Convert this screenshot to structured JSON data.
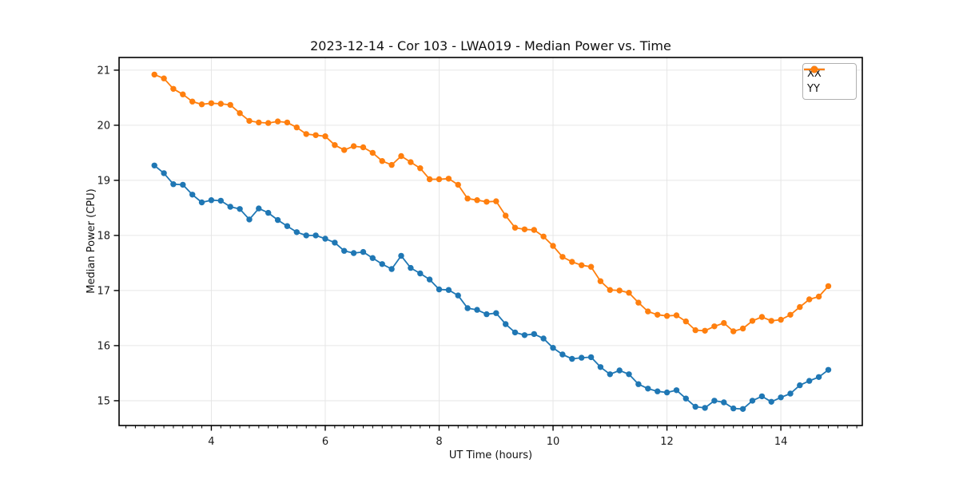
{
  "style": {
    "background": "#ffffff",
    "grid_color": "#e6e6e6",
    "spine_color": "#000000",
    "tick_color": "#1a1a1a",
    "series_blue": "#1f77b4",
    "series_orange": "#ff7f0e"
  },
  "chart_data": {
    "type": "line",
    "title": "2023-12-14 - Cor 103 - LWA019 - Median Power vs. Time",
    "xlabel": "UT Time (hours)",
    "ylabel": "Median Power (CPU)",
    "grid": true,
    "legend_position": "upper right",
    "xlim": [
      2.38,
      15.43
    ],
    "ylim": [
      14.55,
      21.23
    ],
    "xticks": [
      4,
      6,
      8,
      10,
      12,
      14
    ],
    "yticks": [
      15,
      16,
      17,
      18,
      19,
      20,
      21
    ],
    "x_minor_tick_step": 0.1667,
    "x": [
      3.0,
      3.167,
      3.333,
      3.5,
      3.667,
      3.833,
      4.0,
      4.167,
      4.333,
      4.5,
      4.667,
      4.833,
      5.0,
      5.167,
      5.333,
      5.5,
      5.667,
      5.833,
      6.0,
      6.167,
      6.333,
      6.5,
      6.667,
      6.833,
      7.0,
      7.167,
      7.333,
      7.5,
      7.667,
      7.833,
      8.0,
      8.167,
      8.333,
      8.5,
      8.667,
      8.833,
      9.0,
      9.167,
      9.333,
      9.5,
      9.667,
      9.833,
      10.0,
      10.167,
      10.333,
      10.5,
      10.667,
      10.833,
      11.0,
      11.167,
      11.333,
      11.5,
      11.667,
      11.833,
      12.0,
      12.167,
      12.333,
      12.5,
      12.667,
      12.833,
      13.0,
      13.167,
      13.333,
      13.5,
      13.667,
      13.833,
      14.0,
      14.167,
      14.333,
      14.5,
      14.667,
      14.833
    ],
    "series": [
      {
        "name": "XX",
        "color": "#1f77b4",
        "marker": "circle",
        "values": [
          19.27,
          19.13,
          18.93,
          18.92,
          18.74,
          18.6,
          18.64,
          18.63,
          18.52,
          18.48,
          18.29,
          18.49,
          18.41,
          18.28,
          18.17,
          18.06,
          18.0,
          18.0,
          17.94,
          17.87,
          17.72,
          17.68,
          17.7,
          17.59,
          17.48,
          17.39,
          17.63,
          17.41,
          17.31,
          17.2,
          17.02,
          17.01,
          16.91,
          16.68,
          16.65,
          16.57,
          16.59,
          16.39,
          16.24,
          16.19,
          16.21,
          16.13,
          15.96,
          15.84,
          15.76,
          15.78,
          15.79,
          15.61,
          15.48,
          15.55,
          15.48,
          15.3,
          15.22,
          15.17,
          15.15,
          15.19,
          15.04,
          14.89,
          14.87,
          15.0,
          14.97,
          14.86,
          14.85,
          15.0,
          15.08,
          14.98,
          15.06,
          15.13,
          15.28,
          15.36,
          15.43,
          15.56
        ]
      },
      {
        "name": "YY",
        "color": "#ff7f0e",
        "marker": "circle",
        "values": [
          20.92,
          20.85,
          20.66,
          20.56,
          20.43,
          20.38,
          20.4,
          20.39,
          20.37,
          20.22,
          20.08,
          20.05,
          20.04,
          20.07,
          20.05,
          19.96,
          19.84,
          19.82,
          19.8,
          19.64,
          19.55,
          19.62,
          19.6,
          19.5,
          19.35,
          19.28,
          19.44,
          19.33,
          19.22,
          19.02,
          19.02,
          19.03,
          18.92,
          18.67,
          18.64,
          18.61,
          18.62,
          18.36,
          18.14,
          18.11,
          18.1,
          17.98,
          17.81,
          17.61,
          17.52,
          17.46,
          17.43,
          17.17,
          17.01,
          17.0,
          16.96,
          16.78,
          16.62,
          16.56,
          16.54,
          16.55,
          16.44,
          16.28,
          16.27,
          16.35,
          16.41,
          16.26,
          16.31,
          16.45,
          16.52,
          16.45,
          16.47,
          16.56,
          16.7,
          16.84,
          16.89,
          17.08
        ]
      }
    ]
  }
}
